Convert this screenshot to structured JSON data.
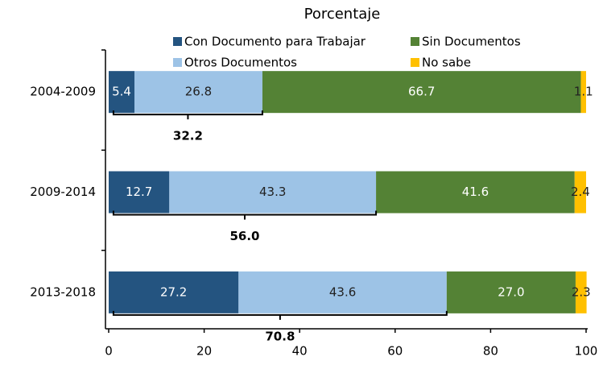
{
  "chart_data": {
    "type": "stacked-bar-horizontal",
    "title": "Porcentaje",
    "categories": [
      "2004-2009",
      "2009-2014",
      "2013-2018"
    ],
    "series": [
      {
        "name": "Con Documento para Trabajar",
        "color": "#245480",
        "values": [
          5.4,
          12.7,
          27.2
        ],
        "value_labels": [
          "5.4",
          "12.7",
          "27.2"
        ]
      },
      {
        "name": "Otros Documentos",
        "color": "#9dc3e6",
        "values": [
          26.8,
          43.3,
          43.6
        ],
        "value_labels": [
          "26.8",
          "43.3",
          "43.6"
        ]
      },
      {
        "name": "Sin Documentos",
        "color": "#548235",
        "values": [
          66.7,
          41.6,
          27.0
        ],
        "value_labels": [
          "66.7",
          "41.6",
          "27.0"
        ]
      },
      {
        "name": "No sabe",
        "color": "#ffc000",
        "values": [
          1.1,
          2.4,
          2.3
        ],
        "value_labels": [
          "1.1",
          "2.4",
          "2.3"
        ]
      }
    ],
    "totals": [
      {
        "value": 32.2,
        "label": "32.2"
      },
      {
        "value": 56.0,
        "label": "56.0"
      },
      {
        "value": 70.8,
        "label": "70.8"
      }
    ],
    "xlim": [
      0,
      100
    ],
    "xticks": [
      0,
      20,
      40,
      60,
      80,
      100
    ]
  }
}
